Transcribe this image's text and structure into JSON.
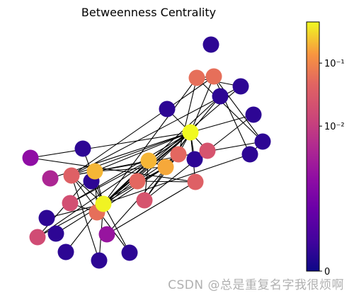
{
  "chart_data": {
    "type": "network",
    "title": "Betweenness Centrality",
    "colormap": "plasma",
    "color_scale": "log",
    "colorbar": {
      "tick_labels": [
        "0",
        "10⁻²",
        "10⁻¹"
      ],
      "tick_values": [
        5e-05,
        0.01,
        0.1
      ],
      "range": [
        5e-05,
        0.45
      ]
    },
    "nodes": [
      {
        "id": 1,
        "value": 0.45
      },
      {
        "id": 2,
        "value": 0.42
      },
      {
        "id": 3,
        "value": 0.21
      },
      {
        "id": 4,
        "value": 0.21
      },
      {
        "id": 5,
        "value": 0.18
      },
      {
        "id": 6,
        "value": 0.06
      },
      {
        "id": 7,
        "value": 0.06
      },
      {
        "id": 8,
        "value": 0.06
      },
      {
        "id": 9,
        "value": 0.05
      },
      {
        "id": 10,
        "value": 0.05
      },
      {
        "id": 11,
        "value": 0.04
      },
      {
        "id": 12,
        "value": 0.04
      },
      {
        "id": 13,
        "value": 0.025
      },
      {
        "id": 14,
        "value": 0.025
      },
      {
        "id": 15,
        "value": 0.02
      },
      {
        "id": 16,
        "value": 0.018
      },
      {
        "id": 17,
        "value": 0.004
      },
      {
        "id": 18,
        "value": 0.002
      },
      {
        "id": 19,
        "value": 0.0015
      },
      {
        "id": 20,
        "value": 0.0001
      },
      {
        "id": 21,
        "value": 0.0001
      },
      {
        "id": 22,
        "value": 0.0001
      },
      {
        "id": 23,
        "value": 0.0001
      },
      {
        "id": 24,
        "value": 0.0001
      },
      {
        "id": 25,
        "value": 0.0001
      },
      {
        "id": 26,
        "value": 0.0001
      },
      {
        "id": 27,
        "value": 0.0001
      },
      {
        "id": 28,
        "value": 0.0001
      },
      {
        "id": 29,
        "value": 0.0001
      },
      {
        "id": 30,
        "value": 0.0001
      },
      {
        "id": 31,
        "value": 0.0001
      },
      {
        "id": 32,
        "value": 0.0001
      },
      {
        "id": 33,
        "value": 0.0001
      },
      {
        "id": 34,
        "value": 0.0001
      }
    ],
    "edges": [
      [
        1,
        11
      ],
      [
        1,
        5
      ],
      [
        1,
        12
      ],
      [
        1,
        17
      ],
      [
        1,
        13
      ],
      [
        1,
        14
      ],
      [
        1,
        15
      ],
      [
        1,
        10
      ],
      [
        1,
        16
      ],
      [
        1,
        9
      ],
      [
        1,
        3
      ],
      [
        1,
        21
      ],
      [
        1,
        27
      ],
      [
        1,
        19
      ],
      [
        1,
        2
      ],
      [
        1,
        8
      ],
      [
        1,
        7
      ],
      [
        1,
        4
      ],
      [
        1,
        24
      ],
      [
        1,
        22
      ],
      [
        9,
        18
      ],
      [
        9,
        10
      ],
      [
        9,
        6
      ],
      [
        11,
        18
      ],
      [
        11,
        19
      ],
      [
        11,
        10
      ],
      [
        14,
        3
      ],
      [
        14,
        9
      ],
      [
        14,
        24
      ],
      [
        2,
        22
      ],
      [
        2,
        23
      ],
      [
        2,
        26
      ],
      [
        2,
        6
      ],
      [
        2,
        28
      ],
      [
        2,
        29
      ],
      [
        2,
        30
      ],
      [
        2,
        31
      ],
      [
        2,
        32
      ],
      [
        2,
        4
      ],
      [
        2,
        3
      ],
      [
        2,
        8
      ],
      [
        2,
        5
      ],
      [
        2,
        12
      ],
      [
        2,
        33
      ],
      [
        2,
        34
      ],
      [
        6,
        7
      ],
      [
        6,
        23
      ],
      [
        6,
        25
      ],
      [
        7,
        25
      ],
      [
        7,
        26
      ],
      [
        25,
        26
      ],
      [
        12,
        33
      ],
      [
        12,
        34
      ],
      [
        12,
        7
      ],
      [
        12,
        23
      ],
      [
        12,
        25
      ],
      [
        3,
        4
      ],
      [
        3,
        5
      ],
      [
        4,
        5
      ],
      [
        4,
        8
      ],
      [
        3,
        8
      ],
      [
        5,
        8
      ],
      [
        8,
        15
      ],
      [
        3,
        15
      ],
      [
        4,
        16
      ],
      [
        5,
        16
      ],
      [
        4,
        12
      ]
    ]
  },
  "watermark": "CSDN @总是重复名字我很烦啊"
}
